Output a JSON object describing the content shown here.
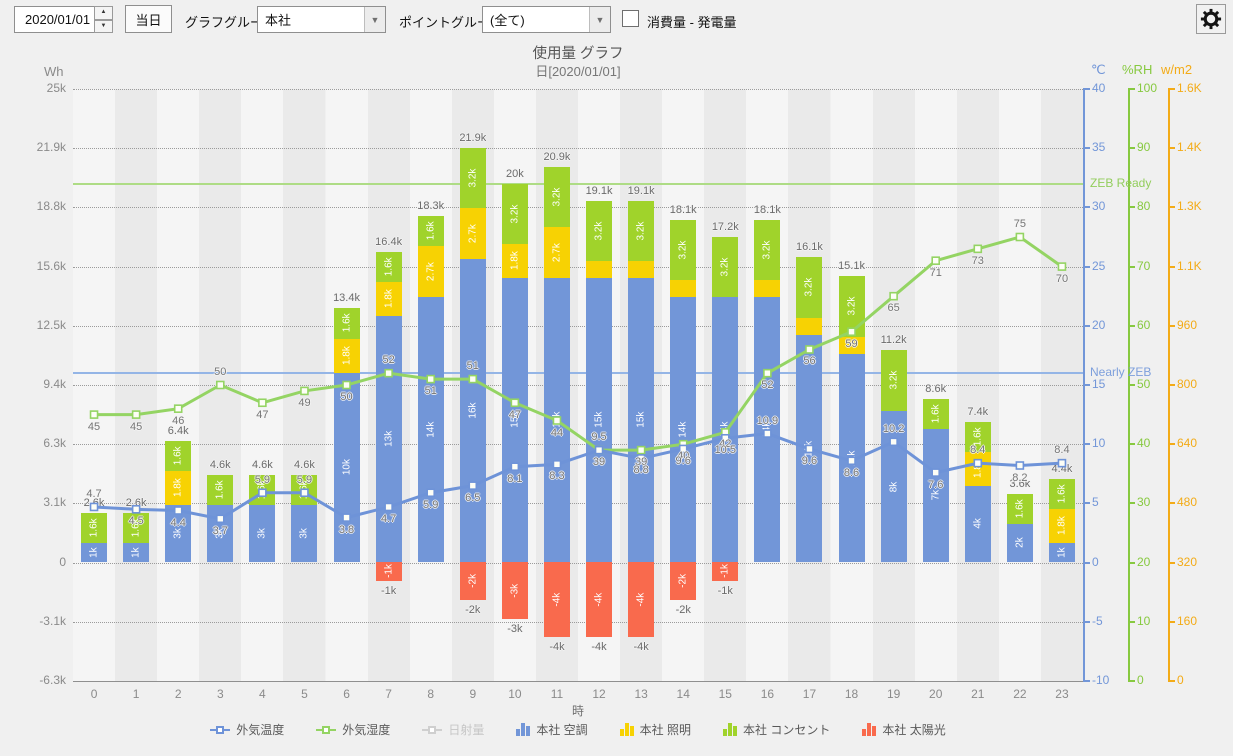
{
  "toolbar": {
    "date_value": "2020/01/01",
    "today_button": "当日",
    "graph_group_label": "グラフグループ:",
    "graph_group_value": "本社",
    "point_group_label": "ポイントグループ:",
    "point_group_value": "(全て)",
    "consumption_checkbox_label": "消費量 - 発電量",
    "consumption_checkbox_checked": false
  },
  "chart_data": {
    "type": "bar",
    "title": "使用量 グラフ",
    "subtitle": "日[2020/01/01]",
    "x_label": "時",
    "categories": [
      "0",
      "1",
      "2",
      "3",
      "4",
      "5",
      "6",
      "7",
      "8",
      "9",
      "10",
      "11",
      "12",
      "13",
      "14",
      "15",
      "16",
      "17",
      "18",
      "19",
      "20",
      "21",
      "22",
      "23"
    ],
    "axes": {
      "left": {
        "title": "Wh",
        "color": "#8a8a8a",
        "max_wh": 25000,
        "min_wh": -6300,
        "tick_labels": [
          "25k",
          "21.9k",
          "18.8k",
          "15.6k",
          "12.5k",
          "9.4k",
          "6.3k",
          "3.1k",
          "0",
          "-3.1k",
          "-6.3k"
        ]
      },
      "temperature": {
        "title": "℃",
        "color": "#7296d8",
        "max": 40,
        "min": -10,
        "tick_labels": [
          "40",
          "35",
          "30",
          "25",
          "20",
          "15",
          "10",
          "5",
          "0",
          "-5",
          "-10"
        ]
      },
      "humidity": {
        "title": "%RH",
        "color": "#87c940",
        "max": 100,
        "min": 0,
        "tick_labels": [
          "100",
          "90",
          "80",
          "70",
          "60",
          "50",
          "40",
          "30",
          "20",
          "10",
          "0"
        ]
      },
      "radiation": {
        "title": "w/m2",
        "color": "#f3ab17",
        "max": 1600,
        "min": 0,
        "tick_labels": [
          "1.6K",
          "1.4K",
          "1.3K",
          "1.1K",
          "960",
          "800",
          "640",
          "480",
          "320",
          "160",
          "0"
        ]
      }
    },
    "ref_lines": [
      {
        "label": "ZEB Ready",
        "value_wh": 20000,
        "line_color": "#aedc85",
        "label_color": "#92cd5c"
      },
      {
        "label": "Nearly ZEB",
        "value_wh": 10000,
        "line_color": "#94b5e6",
        "label_color": "#7d9fdc"
      }
    ],
    "bar_series": [
      {
        "id": "aircon",
        "name": "本社 空調",
        "color": "#7296d8",
        "values_k": [
          1,
          1,
          3,
          3,
          3,
          3,
          10,
          13,
          14,
          16,
          15,
          15,
          15,
          15,
          14,
          14,
          14,
          12,
          11,
          8,
          7,
          4,
          2,
          1
        ]
      },
      {
        "id": "lighting",
        "name": "本社 照明",
        "color": "#f7d203",
        "values_k": [
          0,
          0,
          1.8,
          0,
          0,
          0,
          1.8,
          1.8,
          2.7,
          2.7,
          1.8,
          2.7,
          0.9,
          0.9,
          0.9,
          0,
          0.9,
          0.9,
          0.9,
          0,
          0,
          1.8,
          0,
          1.8
        ]
      },
      {
        "id": "outlet",
        "name": "本社 コンセント",
        "color": "#a0d32b",
        "values_k": [
          1.6,
          1.6,
          1.6,
          1.6,
          1.6,
          1.6,
          1.6,
          1.6,
          1.6,
          3.2,
          3.2,
          3.2,
          3.2,
          3.2,
          3.2,
          3.2,
          3.2,
          3.2,
          3.2,
          3.2,
          1.6,
          1.6,
          1.6,
          1.6
        ]
      },
      {
        "id": "solar",
        "name": "本社 太陽光",
        "color": "#f96a4d",
        "values_k": [
          0,
          0,
          0,
          0,
          0,
          0,
          0,
          -1,
          0,
          -2,
          -3,
          -4,
          -4,
          -4,
          -2,
          -1,
          0,
          0,
          0,
          0,
          0,
          0,
          0,
          0
        ]
      }
    ],
    "totals_k": [
      2.6,
      2.6,
      6.4,
      4.6,
      4.6,
      4.6,
      13.4,
      16.4,
      18.3,
      21.9,
      20,
      20.9,
      19.1,
      19.1,
      18.1,
      17.2,
      18.1,
      16.1,
      15.1,
      11.2,
      8.6,
      7.4,
      3.6,
      4.4
    ],
    "line_series": [
      {
        "id": "temperature",
        "name": "外気温度",
        "color": "#6e93d8",
        "axis": "temperature",
        "disabled": false,
        "values": [
          4.7,
          4.5,
          4.4,
          3.7,
          5.9,
          5.9,
          3.8,
          4.7,
          5.9,
          6.5,
          8.1,
          8.3,
          9.5,
          8.8,
          9.6,
          10.5,
          10.9,
          9.6,
          8.6,
          10.2,
          7.6,
          8.4,
          8.2,
          8.4
        ]
      },
      {
        "id": "humidity",
        "name": "外気湿度",
        "color": "#94d463",
        "axis": "humidity",
        "disabled": false,
        "values": [
          45,
          45,
          46,
          50,
          47,
          49,
          50,
          52,
          51,
          51,
          47,
          44,
          39,
          39,
          40,
          42,
          52,
          56,
          59,
          65,
          71,
          73,
          75,
          70
        ]
      },
      {
        "id": "radiation",
        "name": "日射量",
        "color": "#c9c9c9",
        "axis": "radiation",
        "disabled": true,
        "values": []
      }
    ]
  },
  "legend": [
    {
      "label": "外気温度",
      "type": "line",
      "color": "#6e93d8",
      "disabled": false
    },
    {
      "label": "外気湿度",
      "type": "line",
      "color": "#94d463",
      "disabled": false
    },
    {
      "label": "日射量",
      "type": "line",
      "color": "#cfcfcf",
      "disabled": true
    },
    {
      "label": "本社 空調",
      "type": "bars",
      "color": "#7296d8",
      "disabled": false
    },
    {
      "label": "本社 照明",
      "type": "bars",
      "color": "#f7d203",
      "disabled": false
    },
    {
      "label": "本社 コンセント",
      "type": "bars",
      "color": "#a0d32b",
      "disabled": false
    },
    {
      "label": "本社 太陽光",
      "type": "bars",
      "color": "#f96a4d",
      "disabled": false
    }
  ]
}
